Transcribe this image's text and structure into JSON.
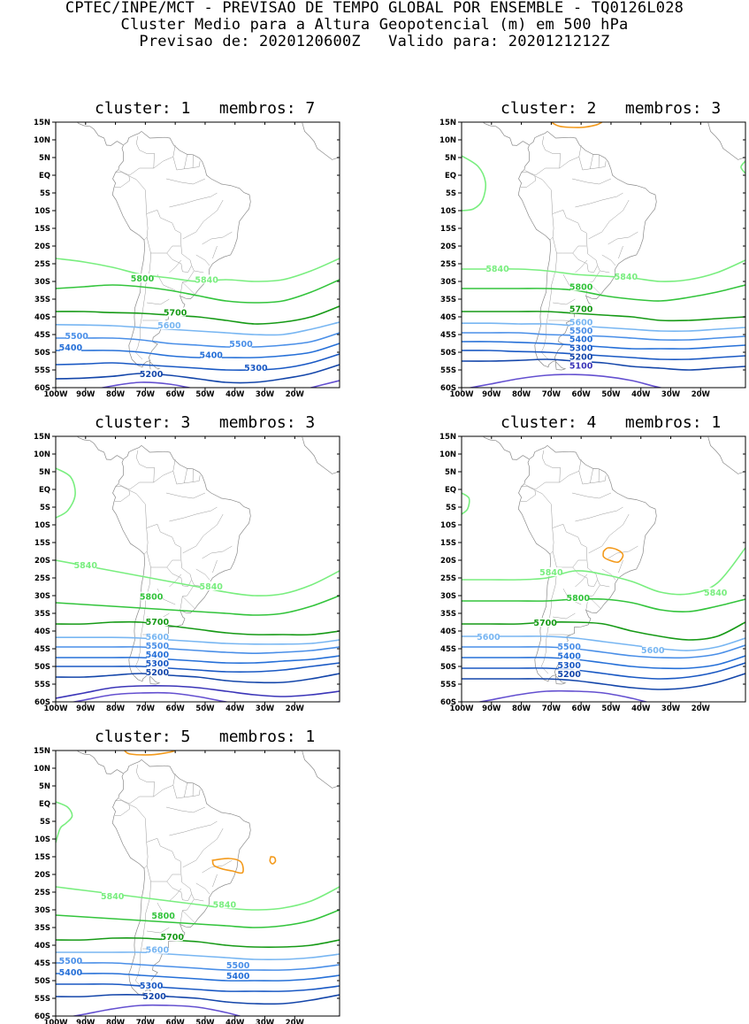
{
  "header": {
    "line1": "CPTEC/INPE/MCT - PREVISAO DE TEMPO GLOBAL POR ENSEMBLE - TQ0126L028",
    "line2": "Cluster Medio para a Altura Geopotencial (m) em 500 hPa",
    "line3": "Previsao de: 2020120600Z   Valido para: 2020121212Z"
  },
  "axes": {
    "lat_labels": [
      "15N",
      "10N",
      "5N",
      "EQ",
      "5S",
      "10S",
      "15S",
      "20S",
      "25S",
      "30S",
      "35S",
      "40S",
      "45S",
      "50S",
      "55S",
      "60S"
    ],
    "lon_labels": [
      "100W",
      "90W",
      "80W",
      "70W",
      "60W",
      "50W",
      "40W",
      "30W",
      "20W"
    ]
  },
  "colors": {
    "c5840": "#79ee7f",
    "c5800": "#33c43c",
    "c5700": "#169a16",
    "c5600": "#78b6f2",
    "c5500": "#4a8fe8",
    "c5400": "#2670d8",
    "c5300": "#1a59c4",
    "c5200": "#1446aa",
    "c5100": "#3b35b8",
    "c5000": "#6450d0",
    "positive_anomaly": "#f39a1c",
    "coast": "#8a8a8a"
  },
  "panels": [
    {
      "title": "cluster: 1   membros: 7",
      "labels": [
        {
          "text": "5800",
          "c": "c5800"
        },
        {
          "text": "5840",
          "c": "c5840"
        },
        {
          "text": "5700",
          "c": "c5700"
        },
        {
          "text": "5600",
          "c": "c5600"
        },
        {
          "text": "5500",
          "c": "c5500"
        },
        {
          "text": "5400",
          "c": "c5400"
        },
        {
          "text": "5500",
          "c": "c5500"
        },
        {
          "text": "5400",
          "c": "c5400"
        },
        {
          "text": "5200",
          "c": "c5200"
        },
        {
          "text": "5300",
          "c": "c5300"
        }
      ]
    },
    {
      "title": "cluster: 2   membros: 3",
      "labels": [
        {
          "text": "5840",
          "c": "c5840"
        },
        {
          "text": "5840",
          "c": "c5840"
        },
        {
          "text": "5800",
          "c": "c5800"
        },
        {
          "text": "5700",
          "c": "c5700"
        },
        {
          "text": "5600",
          "c": "c5600"
        },
        {
          "text": "5500",
          "c": "c5500"
        },
        {
          "text": "5400",
          "c": "c5400"
        },
        {
          "text": "5300",
          "c": "c5300"
        },
        {
          "text": "5200",
          "c": "c5200"
        },
        {
          "text": "5100",
          "c": "c5100"
        }
      ]
    },
    {
      "title": "cluster: 3   membros: 3",
      "labels": [
        {
          "text": "5840",
          "c": "c5840"
        },
        {
          "text": "5840",
          "c": "c5840"
        },
        {
          "text": "5800",
          "c": "c5800"
        },
        {
          "text": "5700",
          "c": "c5700"
        },
        {
          "text": "5600",
          "c": "c5600"
        },
        {
          "text": "5500",
          "c": "c5500"
        },
        {
          "text": "5400",
          "c": "c5400"
        },
        {
          "text": "5300",
          "c": "c5300"
        },
        {
          "text": "5200",
          "c": "c5200"
        }
      ]
    },
    {
      "title": "cluster: 4   membros: 1",
      "labels": [
        {
          "text": "5840",
          "c": "c5840"
        },
        {
          "text": "5800",
          "c": "c5800"
        },
        {
          "text": "5840",
          "c": "c5840"
        },
        {
          "text": "5700",
          "c": "c5700"
        },
        {
          "text": "5600",
          "c": "c5600"
        },
        {
          "text": "5500",
          "c": "c5500"
        },
        {
          "text": "5600",
          "c": "c5600"
        },
        {
          "text": "5400",
          "c": "c5400"
        },
        {
          "text": "5300",
          "c": "c5300"
        },
        {
          "text": "5200",
          "c": "c5200"
        }
      ]
    },
    {
      "title": "cluster: 5   membros: 1",
      "labels": [
        {
          "text": "5840",
          "c": "c5840"
        },
        {
          "text": "5840",
          "c": "c5840"
        },
        {
          "text": "5800",
          "c": "c5800"
        },
        {
          "text": "5700",
          "c": "c5700"
        },
        {
          "text": "5600",
          "c": "c5600"
        },
        {
          "text": "5500",
          "c": "c5500"
        },
        {
          "text": "5400",
          "c": "c5400"
        },
        {
          "text": "5500",
          "c": "c5500"
        },
        {
          "text": "5400",
          "c": "c5400"
        },
        {
          "text": "5300",
          "c": "c5300"
        },
        {
          "text": "5200",
          "c": "c5200"
        }
      ]
    }
  ]
}
